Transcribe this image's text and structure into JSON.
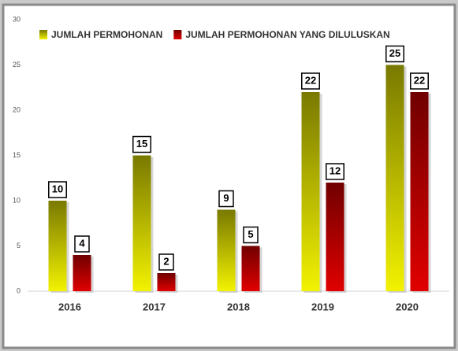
{
  "chart_data": {
    "type": "bar",
    "categories": [
      "2016",
      "2017",
      "2018",
      "2019",
      "2020"
    ],
    "series": [
      {
        "name": "JUMLAH PERMOHONAN",
        "color": "#f2f200",
        "values": [
          10,
          15,
          9,
          22,
          25
        ]
      },
      {
        "name": "JUMLAH PERMOHONAN YANG DILULUSKAN",
        "color": "#e00000",
        "values": [
          4,
          2,
          5,
          12,
          22
        ]
      }
    ],
    "ylim": [
      0,
      30
    ],
    "yticks": [
      0,
      5,
      10,
      15,
      20,
      25,
      30
    ],
    "grid": false,
    "legend": "top"
  }
}
